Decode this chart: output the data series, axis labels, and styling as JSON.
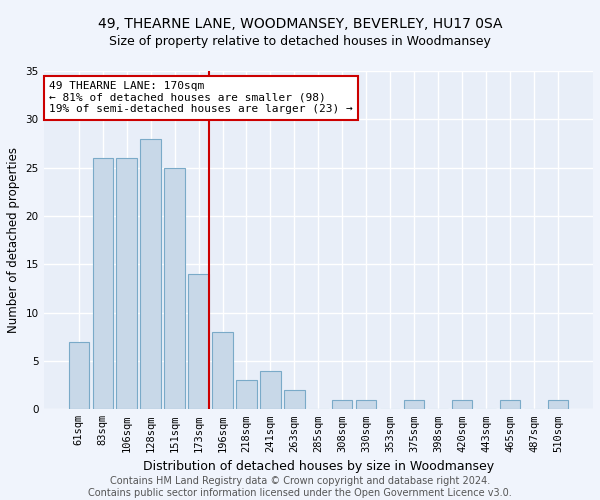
{
  "title1": "49, THEARNE LANE, WOODMANSEY, BEVERLEY, HU17 0SA",
  "title2": "Size of property relative to detached houses in Woodmansey",
  "xlabel": "Distribution of detached houses by size in Woodmansey",
  "ylabel": "Number of detached properties",
  "categories": [
    "61sqm",
    "83sqm",
    "106sqm",
    "128sqm",
    "151sqm",
    "173sqm",
    "196sqm",
    "218sqm",
    "241sqm",
    "263sqm",
    "285sqm",
    "308sqm",
    "330sqm",
    "353sqm",
    "375sqm",
    "398sqm",
    "420sqm",
    "443sqm",
    "465sqm",
    "487sqm",
    "510sqm"
  ],
  "values": [
    7,
    26,
    26,
    28,
    25,
    14,
    8,
    3,
    4,
    2,
    0,
    1,
    1,
    0,
    1,
    0,
    1,
    0,
    1,
    0,
    1
  ],
  "bar_color": "#c8d8e8",
  "bar_edgecolor": "#7aaac8",
  "highlight_index": 5,
  "annotation_text": "49 THEARNE LANE: 170sqm\n← 81% of detached houses are smaller (98)\n19% of semi-detached houses are larger (23) →",
  "annotation_box_color": "#ffffff",
  "annotation_box_edgecolor": "#cc0000",
  "vline_color": "#cc0000",
  "ylim": [
    0,
    35
  ],
  "yticks": [
    0,
    5,
    10,
    15,
    20,
    25,
    30,
    35
  ],
  "background_color": "#e8eef8",
  "grid_color": "#ffffff",
  "fig_background": "#f0f4fc",
  "footer_text": "Contains HM Land Registry data © Crown copyright and database right 2024.\nContains public sector information licensed under the Open Government Licence v3.0.",
  "title1_fontsize": 10,
  "title2_fontsize": 9,
  "xlabel_fontsize": 9,
  "ylabel_fontsize": 8.5,
  "tick_fontsize": 7.5,
  "annotation_fontsize": 8,
  "footer_fontsize": 7
}
